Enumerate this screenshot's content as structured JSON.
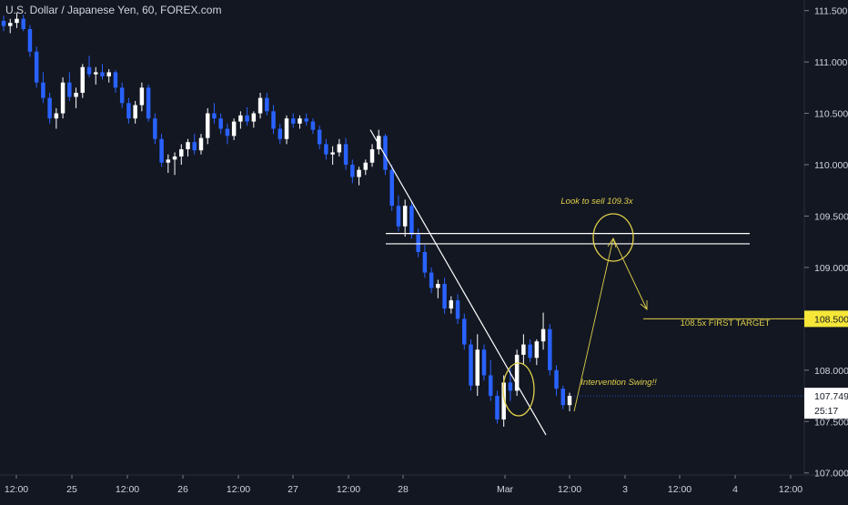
{
  "chart_data": {
    "type": "candlestick",
    "title": "U.S. Dollar / Japanese Yen, 60, FOREX.com",
    "colors": {
      "background": "#131722",
      "up": "#ffffff",
      "down": "#2962ff",
      "axis_text": "#d1d4dc",
      "annotation": "#e0d04a",
      "line": "#ffffff"
    },
    "y_axis": {
      "range": [
        106.98,
        111.55
      ],
      "ticks": [
        "111.500",
        "111.000",
        "110.500",
        "110.000",
        "109.500",
        "109.000",
        "108.500",
        "108.000",
        "107.749",
        "107.500",
        "107.000"
      ],
      "current_price": "107.749",
      "countdown": "25:17",
      "target_label": "108.500"
    },
    "x_axis": {
      "ticks": [
        "12:00",
        "25",
        "12:00",
        "26",
        "12:00",
        "27",
        "12:00",
        "28",
        "Mar",
        "12:00",
        "3",
        "12:00",
        "4",
        "12:00"
      ]
    },
    "candles_ohlc": [
      [
        111.4,
        111.45,
        111.3,
        111.35
      ],
      [
        111.35,
        111.42,
        111.28,
        111.38
      ],
      [
        111.38,
        111.48,
        111.33,
        111.42
      ],
      [
        111.42,
        111.46,
        111.3,
        111.32
      ],
      [
        111.32,
        111.36,
        111.05,
        111.1
      ],
      [
        111.1,
        111.15,
        110.75,
        110.8
      ],
      [
        110.8,
        110.9,
        110.6,
        110.65
      ],
      [
        110.65,
        110.7,
        110.4,
        110.45
      ],
      [
        110.45,
        110.55,
        110.35,
        110.5
      ],
      [
        110.5,
        110.85,
        110.45,
        110.8
      ],
      [
        110.8,
        110.9,
        110.62,
        110.66
      ],
      [
        110.66,
        110.75,
        110.55,
        110.7
      ],
      [
        110.7,
        110.98,
        110.65,
        110.95
      ],
      [
        110.95,
        111.06,
        110.85,
        110.88
      ],
      [
        110.88,
        110.95,
        110.78,
        110.9
      ],
      [
        110.9,
        110.98,
        110.83,
        110.86
      ],
      [
        110.86,
        110.93,
        110.8,
        110.9
      ],
      [
        110.9,
        110.92,
        110.7,
        110.75
      ],
      [
        110.75,
        110.8,
        110.55,
        110.6
      ],
      [
        110.6,
        110.65,
        110.4,
        110.45
      ],
      [
        110.45,
        110.62,
        110.4,
        110.58
      ],
      [
        110.58,
        110.8,
        110.52,
        110.75
      ],
      [
        110.75,
        110.78,
        110.42,
        110.45
      ],
      [
        110.45,
        110.5,
        110.2,
        110.25
      ],
      [
        110.25,
        110.3,
        109.98,
        110.02
      ],
      [
        110.02,
        110.1,
        109.92,
        110.05
      ],
      [
        110.05,
        110.12,
        109.9,
        110.08
      ],
      [
        110.08,
        110.2,
        110.0,
        110.15
      ],
      [
        110.15,
        110.25,
        110.08,
        110.22
      ],
      [
        110.22,
        110.3,
        110.1,
        110.14
      ],
      [
        110.14,
        110.3,
        110.1,
        110.26
      ],
      [
        110.26,
        110.55,
        110.2,
        110.5
      ],
      [
        110.5,
        110.6,
        110.4,
        110.45
      ],
      [
        110.45,
        110.5,
        110.3,
        110.35
      ],
      [
        110.35,
        110.4,
        110.2,
        110.28
      ],
      [
        110.28,
        110.45,
        110.24,
        110.42
      ],
      [
        110.42,
        110.52,
        110.35,
        110.48
      ],
      [
        110.48,
        110.56,
        110.38,
        110.42
      ],
      [
        110.42,
        110.52,
        110.36,
        110.5
      ],
      [
        110.5,
        110.7,
        110.45,
        110.65
      ],
      [
        110.65,
        110.7,
        110.48,
        110.52
      ],
      [
        110.52,
        110.58,
        110.3,
        110.35
      ],
      [
        110.35,
        110.4,
        110.2,
        110.25
      ],
      [
        110.25,
        110.48,
        110.2,
        110.45
      ],
      [
        110.45,
        110.5,
        110.36,
        110.4
      ],
      [
        110.4,
        110.48,
        110.35,
        110.45
      ],
      [
        110.45,
        110.5,
        110.38,
        110.42
      ],
      [
        110.42,
        110.45,
        110.3,
        110.34
      ],
      [
        110.34,
        110.38,
        110.15,
        110.2
      ],
      [
        110.2,
        110.25,
        110.05,
        110.1
      ],
      [
        110.1,
        110.18,
        110.0,
        110.12
      ],
      [
        110.12,
        110.25,
        110.08,
        110.2
      ],
      [
        110.2,
        110.26,
        109.95,
        110.0
      ],
      [
        110.0,
        110.05,
        109.82,
        109.88
      ],
      [
        109.88,
        109.98,
        109.8,
        109.95
      ],
      [
        109.95,
        110.05,
        109.9,
        110.02
      ],
      [
        110.02,
        110.2,
        109.98,
        110.15
      ],
      [
        110.15,
        110.34,
        110.1,
        110.28
      ],
      [
        110.28,
        110.3,
        109.9,
        109.95
      ],
      [
        109.95,
        110.0,
        109.55,
        109.6
      ],
      [
        109.6,
        109.7,
        109.35,
        109.4
      ],
      [
        109.4,
        109.66,
        109.3,
        109.6
      ],
      [
        109.6,
        109.65,
        109.28,
        109.32
      ],
      [
        109.32,
        109.38,
        109.1,
        109.15
      ],
      [
        109.15,
        109.22,
        108.9,
        108.95
      ],
      [
        108.95,
        109.0,
        108.75,
        108.8
      ],
      [
        108.8,
        108.88,
        108.7,
        108.84
      ],
      [
        108.84,
        108.9,
        108.55,
        108.6
      ],
      [
        108.6,
        108.72,
        108.55,
        108.68
      ],
      [
        108.68,
        108.74,
        108.45,
        108.5
      ],
      [
        108.5,
        108.55,
        108.2,
        108.25
      ],
      [
        108.25,
        108.3,
        107.8,
        107.85
      ],
      [
        107.85,
        108.35,
        107.75,
        108.2
      ],
      [
        108.2,
        108.25,
        107.9,
        107.95
      ],
      [
        107.95,
        108.1,
        107.7,
        107.75
      ],
      [
        107.75,
        107.8,
        107.48,
        107.52
      ],
      [
        107.52,
        107.95,
        107.45,
        107.88
      ],
      [
        107.88,
        108.02,
        107.7,
        107.8
      ],
      [
        107.8,
        108.2,
        107.75,
        108.15
      ],
      [
        108.15,
        108.35,
        108.05,
        108.25
      ],
      [
        108.25,
        108.3,
        108.08,
        108.12
      ],
      [
        108.12,
        108.3,
        108.05,
        108.28
      ],
      [
        108.28,
        108.56,
        108.2,
        108.4
      ],
      [
        108.4,
        108.45,
        107.95,
        108.0
      ],
      [
        108.0,
        108.05,
        107.75,
        107.82
      ],
      [
        107.82,
        107.85,
        107.62,
        107.66
      ],
      [
        107.66,
        107.78,
        107.6,
        107.75
      ]
    ],
    "annotations": {
      "sell_text": "Look to sell 109.3x",
      "target_text": "108.5x FIRST TARGET",
      "swing_text": "Intervention Swing!!",
      "resistance_upper": 109.33,
      "resistance_lower": 109.23,
      "target_level": 108.5,
      "trendline": [
        [
          110.34,
          0
        ],
        [
          107.37,
          1
        ]
      ]
    }
  }
}
